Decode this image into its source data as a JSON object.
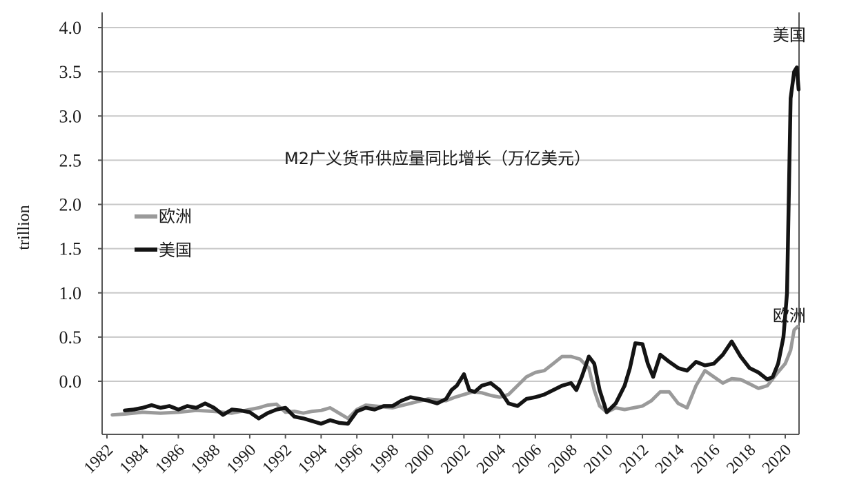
{
  "chart_data": {
    "type": "line",
    "title": "M2广义货币供应量同比增长（万亿美元）",
    "ylabel": "trillion",
    "xlabel": "",
    "xlim": [
      1982,
      2020.8
    ],
    "ylim": [
      -0.5,
      4.2
    ],
    "y_ticks": [
      "4.0",
      "3.5",
      "3.0",
      "2.5",
      "2.0",
      "1.5",
      "1.0",
      "0.5",
      "0.0"
    ],
    "y_tick_values": [
      4.0,
      3.5,
      3.0,
      2.5,
      2.0,
      1.5,
      1.0,
      0.5,
      0.0
    ],
    "x_ticks": [
      "1982",
      "1984",
      "1986",
      "1988",
      "1990",
      "1992",
      "1994",
      "1996",
      "1998",
      "2000",
      "2002",
      "2004",
      "2006",
      "2008",
      "2010",
      "2012",
      "2014",
      "2016",
      "2018",
      "2020"
    ],
    "x_tick_values": [
      1982,
      1984,
      1986,
      1988,
      1990,
      1992,
      1994,
      1996,
      1998,
      2000,
      2002,
      2004,
      2006,
      2008,
      2010,
      2012,
      2014,
      2016,
      2018,
      2020
    ],
    "grid": "horizontal",
    "legend_position": "left",
    "colors": {
      "europe": "#9a9a9a",
      "us": "#141414",
      "grid": "#c8c8c8",
      "axis": "#555555"
    },
    "series": [
      {
        "name": "欧洲",
        "x": [
          1982.3,
          1983.0,
          1984.0,
          1985.0,
          1986.0,
          1987.0,
          1988.0,
          1989.0,
          1990.0,
          1990.5,
          1991.0,
          1991.5,
          1992.0,
          1992.5,
          1993.0,
          1993.5,
          1994.0,
          1994.5,
          1995.0,
          1995.5,
          1996.0,
          1996.5,
          1997.0,
          1998.0,
          1999.0,
          2000.0,
          2001.0,
          2001.5,
          2002.0,
          2002.5,
          2003.0,
          2003.5,
          2004.0,
          2004.5,
          2005.0,
          2005.5,
          2006.0,
          2006.5,
          2007.0,
          2007.5,
          2008.0,
          2008.5,
          2009.0,
          2009.3,
          2009.6,
          2010.0,
          2010.5,
          2011.0,
          2011.5,
          2012.0,
          2012.5,
          2013.0,
          2013.5,
          2014.0,
          2014.5,
          2015.0,
          2015.5,
          2016.0,
          2016.5,
          2017.0,
          2017.5,
          2018.0,
          2018.5,
          2019.0,
          2019.5,
          2020.0,
          2020.3,
          2020.5,
          2020.7
        ],
        "y": [
          -0.38,
          -0.37,
          -0.35,
          -0.36,
          -0.35,
          -0.33,
          -0.34,
          -0.36,
          -0.32,
          -0.3,
          -0.27,
          -0.26,
          -0.35,
          -0.34,
          -0.36,
          -0.34,
          -0.33,
          -0.3,
          -0.36,
          -0.42,
          -0.32,
          -0.27,
          -0.28,
          -0.3,
          -0.25,
          -0.2,
          -0.22,
          -0.18,
          -0.15,
          -0.12,
          -0.13,
          -0.16,
          -0.18,
          -0.15,
          -0.05,
          0.05,
          0.1,
          0.12,
          0.2,
          0.28,
          0.28,
          0.25,
          0.15,
          -0.1,
          -0.28,
          -0.35,
          -0.3,
          -0.32,
          -0.3,
          -0.28,
          -0.22,
          -0.12,
          -0.12,
          -0.25,
          -0.3,
          -0.05,
          0.12,
          0.05,
          -0.02,
          0.03,
          0.02,
          -0.03,
          -0.08,
          -0.05,
          0.08,
          0.2,
          0.35,
          0.58,
          0.62
        ]
      },
      {
        "name": "美国",
        "x": [
          1983.0,
          1983.5,
          1984.0,
          1984.5,
          1985.0,
          1985.5,
          1986.0,
          1986.5,
          1987.0,
          1987.5,
          1988.0,
          1988.5,
          1989.0,
          1989.5,
          1990.0,
          1990.5,
          1991.0,
          1991.5,
          1992.0,
          1992.5,
          1993.0,
          1993.5,
          1994.0,
          1994.5,
          1995.0,
          1995.5,
          1996.0,
          1996.5,
          1997.0,
          1997.5,
          1998.0,
          1998.5,
          1999.0,
          1999.5,
          2000.0,
          2000.5,
          2001.0,
          2001.3,
          2001.6,
          2002.0,
          2002.3,
          2002.6,
          2003.0,
          2003.5,
          2004.0,
          2004.5,
          2005.0,
          2005.5,
          2006.0,
          2006.5,
          2007.0,
          2007.5,
          2008.0,
          2008.3,
          2008.6,
          2009.0,
          2009.3,
          2009.6,
          2010.0,
          2010.5,
          2011.0,
          2011.3,
          2011.6,
          2012.0,
          2012.3,
          2012.6,
          2013.0,
          2013.5,
          2014.0,
          2014.5,
          2015.0,
          2015.5,
          2016.0,
          2016.5,
          2017.0,
          2017.5,
          2018.0,
          2018.5,
          2019.0,
          2019.3,
          2019.6,
          2019.9,
          2020.1,
          2020.3,
          2020.5,
          2020.65,
          2020.75
        ],
        "y": [
          -0.33,
          -0.32,
          -0.3,
          -0.27,
          -0.3,
          -0.28,
          -0.32,
          -0.28,
          -0.3,
          -0.25,
          -0.3,
          -0.38,
          -0.32,
          -0.33,
          -0.35,
          -0.42,
          -0.36,
          -0.32,
          -0.3,
          -0.4,
          -0.42,
          -0.45,
          -0.48,
          -0.44,
          -0.47,
          -0.48,
          -0.34,
          -0.3,
          -0.32,
          -0.28,
          -0.28,
          -0.22,
          -0.18,
          -0.2,
          -0.22,
          -0.25,
          -0.2,
          -0.1,
          -0.05,
          0.08,
          -0.1,
          -0.12,
          -0.05,
          -0.02,
          -0.1,
          -0.25,
          -0.28,
          -0.2,
          -0.18,
          -0.15,
          -0.1,
          -0.05,
          -0.02,
          -0.1,
          0.05,
          0.28,
          0.2,
          -0.1,
          -0.35,
          -0.25,
          -0.05,
          0.15,
          0.43,
          0.42,
          0.2,
          0.05,
          0.3,
          0.22,
          0.15,
          0.12,
          0.22,
          0.18,
          0.2,
          0.3,
          0.45,
          0.28,
          0.15,
          0.1,
          0.02,
          0.05,
          0.2,
          0.5,
          1.0,
          3.2,
          3.5,
          3.55,
          3.3
        ]
      }
    ],
    "annotations": [
      {
        "text": "美国",
        "x": 2019.3,
        "y": 3.85
      },
      {
        "text": "欧洲",
        "x": 2019.3,
        "y": 0.68
      }
    ]
  }
}
